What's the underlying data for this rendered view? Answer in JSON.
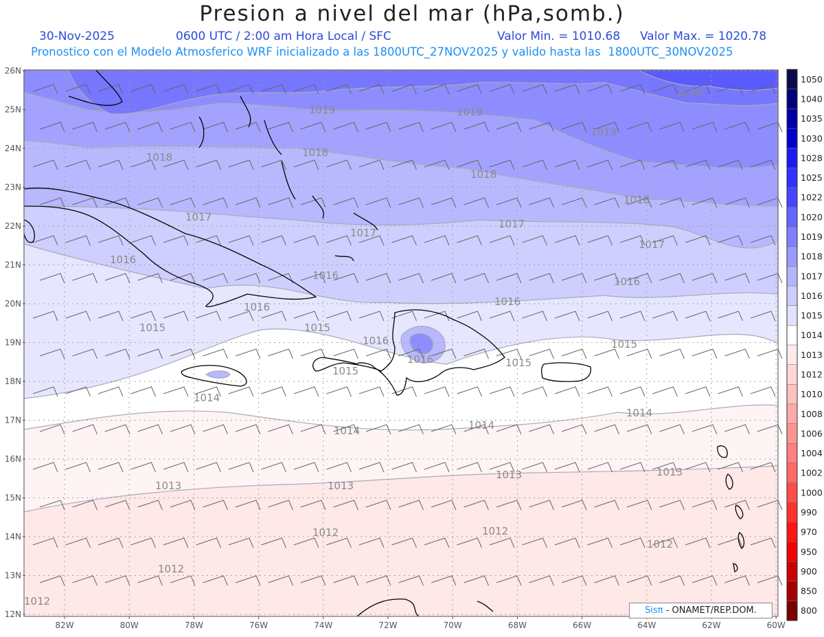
{
  "header": {
    "title": "Presion a nivel del mar (hPa,somb.)",
    "date": "30-Nov-2025",
    "time": "0600 UTC / 2:00 am Hora Local / SFC",
    "min_label": "Valor Min. = 1010.68",
    "max_label": "Valor Max. = 1020.78",
    "model_line": "Pronostico con el Modelo Atmosferico WRF inicializado a las 1800UTC_27NOV2025 y valido hasta las  1800UTC_30NOV2025"
  },
  "axes": {
    "lon_labels": [
      "82W",
      "80W",
      "78W",
      "76W",
      "74W",
      "72W",
      "70W",
      "68W",
      "66W",
      "64W",
      "62W",
      "60W"
    ],
    "lat_labels": [
      "26N",
      "25N",
      "24N",
      "23N",
      "22N",
      "21N",
      "20N",
      "19N",
      "18N",
      "17N",
      "16N",
      "15N",
      "14N",
      "13N",
      "12N"
    ]
  },
  "colorbar": {
    "labels": [
      "1050",
      "1040",
      "1035",
      "1030",
      "1028",
      "1025",
      "1022",
      "1020",
      "1019",
      "1018",
      "1017",
      "1016",
      "1015",
      "1014",
      "1013",
      "1012",
      "1010",
      "1008",
      "1006",
      "1004",
      "1002",
      "1000",
      "990",
      "970",
      "950",
      "900",
      "850",
      "800"
    ],
    "colors": [
      "#0a0a4a",
      "#00007a",
      "#0000a6",
      "#0000cc",
      "#1b1bef",
      "#3030ff",
      "#4646ff",
      "#6464ff",
      "#8080ff",
      "#9a9aff",
      "#b4b4ff",
      "#cdcdff",
      "#e2e2ff",
      "#ffffff",
      "#ffeaea",
      "#ffd6d6",
      "#ffc0c0",
      "#ffaaaa",
      "#ff9494",
      "#ff7e7e",
      "#ff6868",
      "#ff4c4c",
      "#ff3030",
      "#ff1414",
      "#ee0000",
      "#cc0000",
      "#a60000",
      "#7a0000"
    ]
  },
  "contour_labels": [
    {
      "text": "1020"
    },
    {
      "text": "1019"
    },
    {
      "text": "1019"
    },
    {
      "text": "1019"
    },
    {
      "text": "1018"
    },
    {
      "text": "1018"
    },
    {
      "text": "1018"
    },
    {
      "text": "1018"
    },
    {
      "text": "1017"
    },
    {
      "text": "1017"
    },
    {
      "text": "1017"
    },
    {
      "text": "1017"
    },
    {
      "text": "1016"
    },
    {
      "text": "1016"
    },
    {
      "text": "1016"
    },
    {
      "text": "1016"
    },
    {
      "text": "1016"
    },
    {
      "text": "1016"
    },
    {
      "text": "1016"
    },
    {
      "text": "1015"
    },
    {
      "text": "1015"
    },
    {
      "text": "1015"
    },
    {
      "text": "1015"
    },
    {
      "text": "1015"
    },
    {
      "text": "1014"
    },
    {
      "text": "1014"
    },
    {
      "text": "1014"
    },
    {
      "text": "1014"
    },
    {
      "text": "1013"
    },
    {
      "text": "1013"
    },
    {
      "text": "1013"
    },
    {
      "text": "1013"
    },
    {
      "text": "1012"
    },
    {
      "text": "1012"
    },
    {
      "text": "1012"
    },
    {
      "text": "1012"
    },
    {
      "text": "1012"
    }
  ],
  "credit": {
    "brand": "Sisπ",
    "text": " - ONAMET/REP.DOM."
  },
  "colors": {
    "title": "#222222",
    "date_line": "#2a4bd8",
    "model_line": "#1f8ff0"
  }
}
